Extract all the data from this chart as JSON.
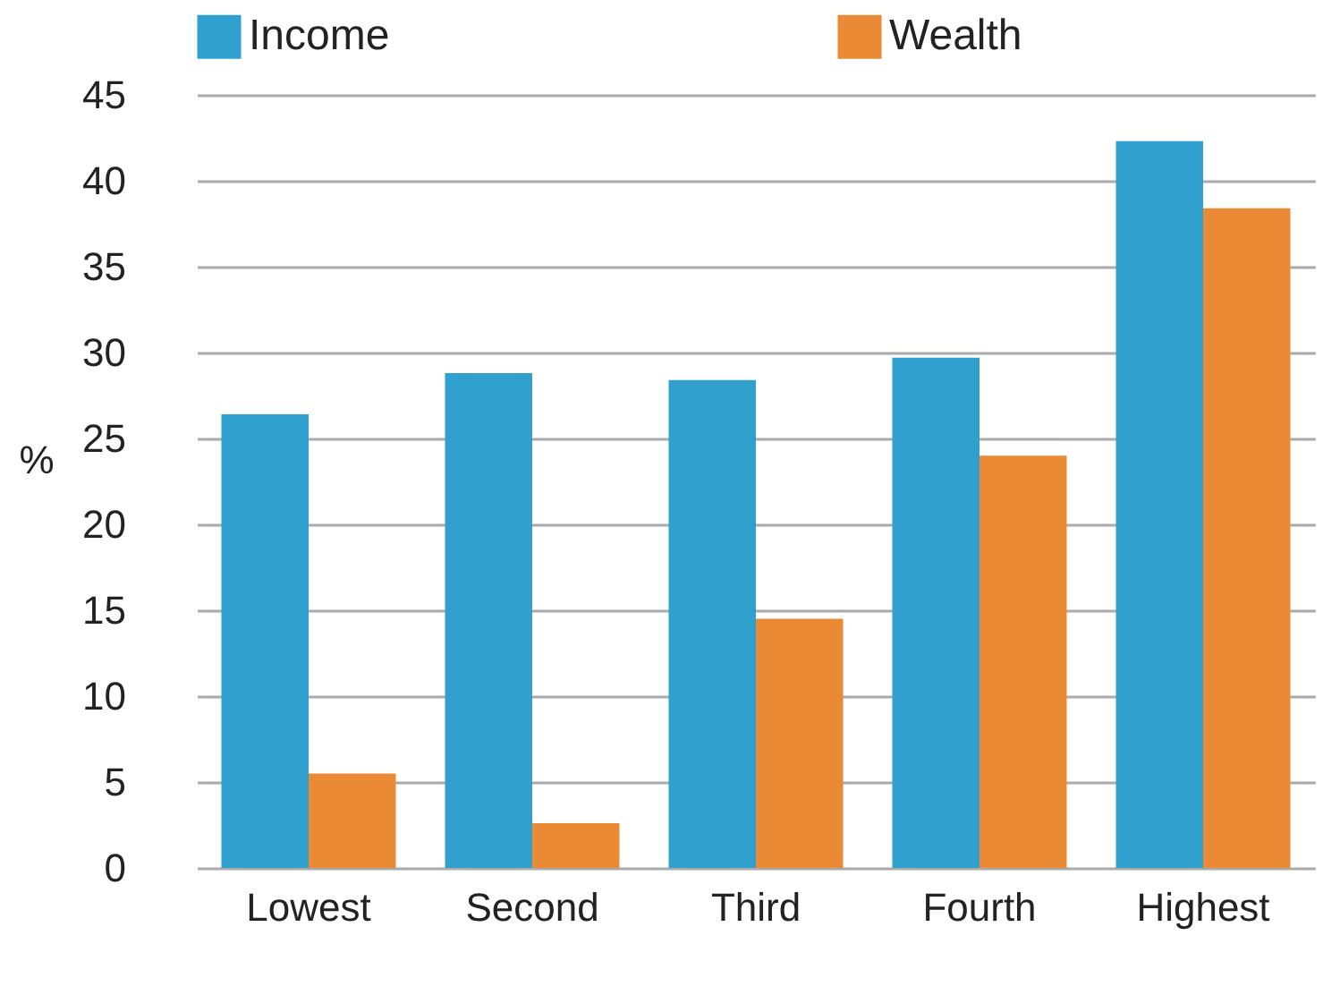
{
  "chart_data": {
    "type": "bar",
    "ylabel": "%",
    "categories": [
      "Lowest",
      "Second",
      "Third",
      "Fourth",
      "Highest"
    ],
    "series": [
      {
        "name": "Income",
        "color": "#30a0cf",
        "values": [
          26.4,
          28.8,
          28.4,
          29.7,
          42.3
        ]
      },
      {
        "name": "Wealth",
        "color": "#eb8a35",
        "values": [
          5.5,
          2.6,
          14.5,
          24.0,
          38.4
        ]
      }
    ],
    "ylim": [
      0,
      45
    ],
    "yticks": [
      0,
      5,
      10,
      15,
      20,
      25,
      30,
      35,
      40,
      45
    ],
    "grid": "y",
    "legend": "top"
  }
}
